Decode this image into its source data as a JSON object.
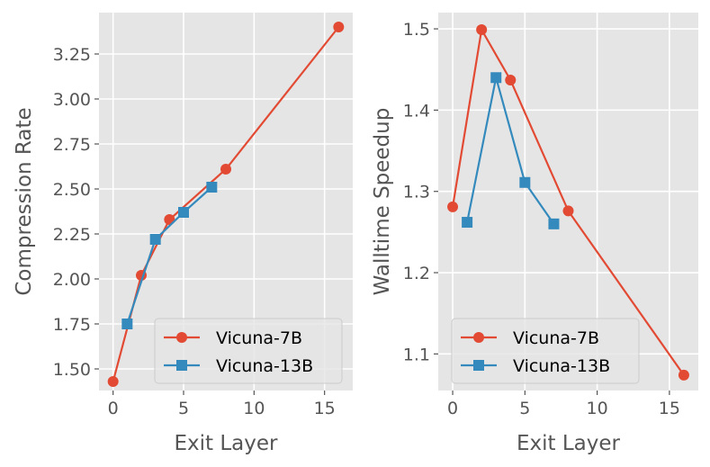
{
  "colors": {
    "vicuna_7b": "#E24A33",
    "vicuna_13b": "#348ABD",
    "plot_background": "#E5E5E5",
    "grid": "#FFFFFF",
    "text": "#555555"
  },
  "chart_data": [
    {
      "type": "line",
      "title": "",
      "xlabel": "Exit Layer",
      "ylabel": "Compression Rate",
      "xlim": [
        -1,
        17
      ],
      "ylim": [
        1.38,
        3.48
      ],
      "xticks": [
        0,
        5,
        10,
        15
      ],
      "xtick_labels": [
        "0",
        "5",
        "10",
        "15"
      ],
      "yticks": [
        1.5,
        1.75,
        2.0,
        2.25,
        2.5,
        2.75,
        3.0,
        3.25
      ],
      "ytick_labels": [
        "1.50",
        "1.75",
        "2.00",
        "2.25",
        "2.50",
        "2.75",
        "3.00",
        "3.25"
      ],
      "grid": true,
      "legend_position": "lower-right",
      "series": [
        {
          "name": "Vicuna-7B",
          "marker": "circle",
          "color": "#E24A33",
          "x": [
            0,
            2,
            4,
            8,
            16
          ],
          "y": [
            1.43,
            2.02,
            2.33,
            2.61,
            3.4
          ]
        },
        {
          "name": "Vicuna-13B",
          "marker": "square",
          "color": "#348ABD",
          "x": [
            1,
            3,
            5,
            7
          ],
          "y": [
            1.75,
            2.22,
            2.37,
            2.51
          ]
        }
      ]
    },
    {
      "type": "line",
      "title": "",
      "xlabel": "Exit Layer",
      "ylabel": "Walltime Speedup",
      "xlim": [
        -1,
        17
      ],
      "ylim": [
        1.055,
        1.52
      ],
      "xticks": [
        0,
        5,
        10,
        15
      ],
      "xtick_labels": [
        "0",
        "5",
        "10",
        "15"
      ],
      "yticks": [
        1.1,
        1.2,
        1.3,
        1.4,
        1.5
      ],
      "ytick_labels": [
        "1.1",
        "1.2",
        "1.3",
        "1.4",
        "1.5"
      ],
      "grid": true,
      "legend_position": "lower-left",
      "series": [
        {
          "name": "Vicuna-7B",
          "marker": "circle",
          "color": "#E24A33",
          "x": [
            0,
            2,
            4,
            8,
            16
          ],
          "y": [
            1.281,
            1.499,
            1.437,
            1.276,
            1.074
          ]
        },
        {
          "name": "Vicuna-13B",
          "marker": "square",
          "color": "#348ABD",
          "x": [
            1,
            3,
            5,
            7
          ],
          "y": [
            1.262,
            1.44,
            1.311,
            1.26
          ]
        }
      ]
    }
  ]
}
